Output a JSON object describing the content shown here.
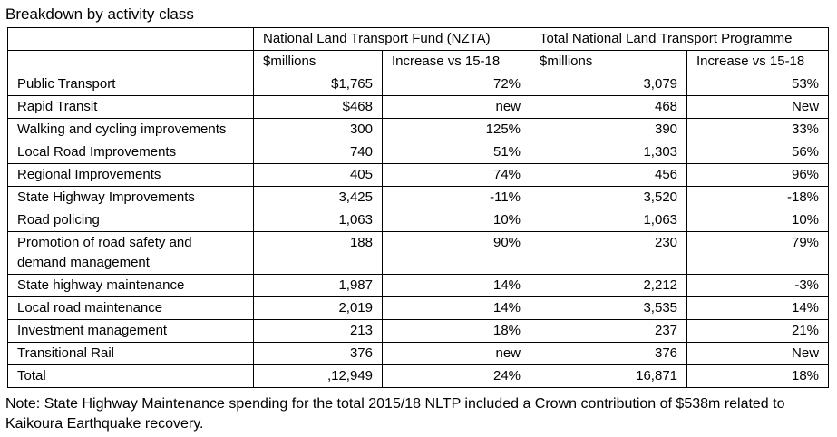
{
  "title": "Breakdown by activity class",
  "table": {
    "group_header": [
      "National Land Transport Fund (NZTA)",
      "Total National Land Transport Programme"
    ],
    "sub_header": [
      "$millions",
      "Increase vs 15-18",
      "$millions",
      "Increase vs 15-18"
    ],
    "rows": [
      [
        "Public Transport",
        "$1,765",
        "72%",
        "3,079",
        "53%"
      ],
      [
        "Rapid Transit",
        "$468",
        "new",
        "468",
        "New"
      ],
      [
        "Walking and cycling improvements",
        "300",
        "125%",
        "390",
        "33%"
      ],
      [
        "Local Road Improvements",
        "740",
        "51%",
        "1,303",
        "56%"
      ],
      [
        "Regional Improvements",
        "405",
        "74%",
        "456",
        "96%"
      ],
      [
        "State Highway Improvements",
        "3,425",
        "-11%",
        "3,520",
        "-18%"
      ],
      [
        "Road policing",
        "1,063",
        "10%",
        "1,063",
        "10%"
      ],
      [
        "Promotion of road safety and demand management",
        "188",
        "90%",
        "230",
        "79%"
      ],
      [
        "State highway maintenance",
        "1,987",
        "14%",
        "2,212",
        "-3%"
      ],
      [
        "Local road maintenance",
        "2,019",
        "14%",
        "3,535",
        "14%"
      ],
      [
        "Investment management",
        "213",
        "18%",
        "237",
        "21%"
      ],
      [
        "Transitional Rail",
        "376",
        "new",
        "376",
        "New"
      ],
      [
        "Total",
        ",12,949",
        "24%",
        "16,871",
        "18%"
      ]
    ]
  },
  "note": "Note: State Highway Maintenance spending for the total 2015/18 NLTP included a Crown contribution of $538m related to Kaikoura Earthquake recovery."
}
